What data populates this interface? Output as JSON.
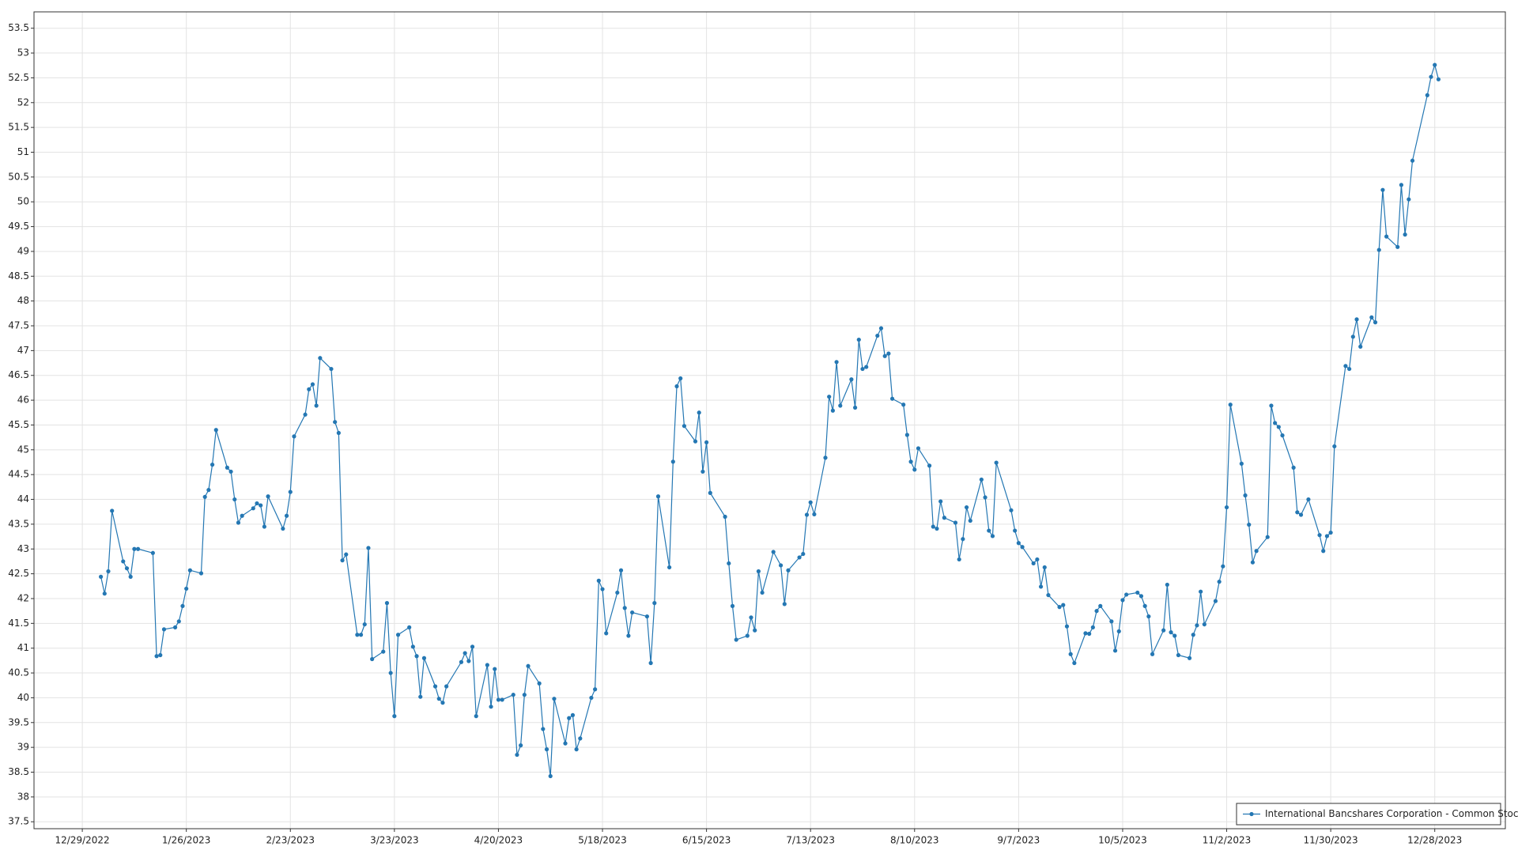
{
  "chart_data": {
    "type": "line",
    "x": [
      "1/3/2023",
      "1/4/2023",
      "1/5/2023",
      "1/6/2023",
      "1/9/2023",
      "1/10/2023",
      "1/11/2023",
      "1/12/2023",
      "1/13/2023",
      "1/17/2023",
      "1/18/2023",
      "1/19/2023",
      "1/20/2023",
      "1/23/2023",
      "1/24/2023",
      "1/25/2023",
      "1/26/2023",
      "1/27/2023",
      "1/30/2023",
      "1/31/2023",
      "2/1/2023",
      "2/2/2023",
      "2/3/2023",
      "2/6/2023",
      "2/7/2023",
      "2/8/2023",
      "2/9/2023",
      "2/10/2023",
      "2/13/2023",
      "2/14/2023",
      "2/15/2023",
      "2/16/2023",
      "2/17/2023",
      "2/21/2023",
      "2/22/2023",
      "2/23/2023",
      "2/24/2023",
      "2/27/2023",
      "2/28/2023",
      "3/1/2023",
      "3/2/2023",
      "3/3/2023",
      "3/6/2023",
      "3/7/2023",
      "3/8/2023",
      "3/9/2023",
      "3/10/2023",
      "3/13/2023",
      "3/14/2023",
      "3/15/2023",
      "3/16/2023",
      "3/17/2023",
      "3/20/2023",
      "3/21/2023",
      "3/22/2023",
      "3/23/2023",
      "3/24/2023",
      "3/27/2023",
      "3/28/2023",
      "3/29/2023",
      "3/30/2023",
      "3/31/2023",
      "4/3/2023",
      "4/4/2023",
      "4/5/2023",
      "4/6/2023",
      "4/10/2023",
      "4/11/2023",
      "4/12/2023",
      "4/13/2023",
      "4/14/2023",
      "4/17/2023",
      "4/18/2023",
      "4/19/2023",
      "4/20/2023",
      "4/21/2023",
      "4/24/2023",
      "4/25/2023",
      "4/26/2023",
      "4/27/2023",
      "4/28/2023",
      "5/1/2023",
      "5/2/2023",
      "5/3/2023",
      "5/4/2023",
      "5/5/2023",
      "5/8/2023",
      "5/9/2023",
      "5/10/2023",
      "5/11/2023",
      "5/12/2023",
      "5/15/2023",
      "5/16/2023",
      "5/17/2023",
      "5/18/2023",
      "5/19/2023",
      "5/22/2023",
      "5/23/2023",
      "5/24/2023",
      "5/25/2023",
      "5/26/2023",
      "5/30/2023",
      "5/31/2023",
      "6/1/2023",
      "6/2/2023",
      "6/5/2023",
      "6/6/2023",
      "6/7/2023",
      "6/8/2023",
      "6/9/2023",
      "6/12/2023",
      "6/13/2023",
      "6/14/2023",
      "6/15/2023",
      "6/16/2023",
      "6/20/2023",
      "6/21/2023",
      "6/22/2023",
      "6/23/2023",
      "6/26/2023",
      "6/27/2023",
      "6/28/2023",
      "6/29/2023",
      "6/30/2023",
      "7/3/2023",
      "7/5/2023",
      "7/6/2023",
      "7/7/2023",
      "7/10/2023",
      "7/11/2023",
      "7/12/2023",
      "7/13/2023",
      "7/14/2023",
      "7/17/2023",
      "7/18/2023",
      "7/19/2023",
      "7/20/2023",
      "7/21/2023",
      "7/24/2023",
      "7/25/2023",
      "7/26/2023",
      "7/27/2023",
      "7/28/2023",
      "7/31/2023",
      "8/1/2023",
      "8/2/2023",
      "8/3/2023",
      "8/4/2023",
      "8/7/2023",
      "8/8/2023",
      "8/9/2023",
      "8/10/2023",
      "8/11/2023",
      "8/14/2023",
      "8/15/2023",
      "8/16/2023",
      "8/17/2023",
      "8/18/2023",
      "8/21/2023",
      "8/22/2023",
      "8/23/2023",
      "8/24/2023",
      "8/25/2023",
      "8/28/2023",
      "8/29/2023",
      "8/30/2023",
      "8/31/2023",
      "9/1/2023",
      "9/5/2023",
      "9/6/2023",
      "9/7/2023",
      "9/8/2023",
      "9/11/2023",
      "9/12/2023",
      "9/13/2023",
      "9/14/2023",
      "9/15/2023",
      "9/18/2023",
      "9/19/2023",
      "9/20/2023",
      "9/21/2023",
      "9/22/2023",
      "9/25/2023",
      "9/26/2023",
      "9/27/2023",
      "9/28/2023",
      "9/29/2023",
      "10/2/2023",
      "10/3/2023",
      "10/4/2023",
      "10/5/2023",
      "10/6/2023",
      "10/9/2023",
      "10/10/2023",
      "10/11/2023",
      "10/12/2023",
      "10/13/2023",
      "10/16/2023",
      "10/17/2023",
      "10/18/2023",
      "10/19/2023",
      "10/20/2023",
      "10/23/2023",
      "10/24/2023",
      "10/25/2023",
      "10/26/2023",
      "10/27/2023",
      "10/30/2023",
      "10/31/2023",
      "11/1/2023",
      "11/2/2023",
      "11/3/2023",
      "11/6/2023",
      "11/7/2023",
      "11/8/2023",
      "11/9/2023",
      "11/10/2023",
      "11/13/2023",
      "11/14/2023",
      "11/15/2023",
      "11/16/2023",
      "11/17/2023",
      "11/20/2023",
      "11/21/2023",
      "11/22/2023",
      "11/24/2023",
      "11/27/2023",
      "11/28/2023",
      "11/29/2023",
      "11/30/2023",
      "12/1/2023",
      "12/4/2023",
      "12/5/2023",
      "12/6/2023",
      "12/7/2023",
      "12/8/2023",
      "12/11/2023",
      "12/12/2023",
      "12/13/2023",
      "12/14/2023",
      "12/15/2023",
      "12/18/2023",
      "12/19/2023",
      "12/20/2023",
      "12/21/2023",
      "12/22/2023",
      "12/26/2023",
      "12/27/2023",
      "12/28/2023",
      "12/29/2023"
    ],
    "series": [
      {
        "name": "International Bancshares Corporation - Common Stock",
        "color": "#2477b3",
        "values": [
          42.44,
          42.1,
          42.55,
          43.77,
          42.75,
          42.61,
          42.44,
          43.0,
          43.0,
          42.92,
          40.84,
          40.86,
          41.38,
          41.42,
          41.54,
          41.85,
          42.2,
          42.57,
          42.51,
          44.05,
          44.19,
          44.7,
          45.4,
          44.64,
          44.56,
          44.0,
          43.53,
          43.67,
          43.82,
          43.92,
          43.88,
          43.45,
          44.06,
          43.41,
          43.67,
          44.15,
          45.27,
          45.71,
          46.22,
          46.32,
          45.89,
          46.85,
          46.63,
          45.56,
          45.34,
          42.77,
          42.89,
          41.27,
          41.27,
          41.48,
          43.02,
          40.78,
          40.93,
          41.91,
          40.5,
          39.63,
          41.27,
          41.42,
          41.03,
          40.84,
          40.02,
          40.8,
          40.23,
          39.98,
          39.9,
          40.23,
          40.72,
          40.9,
          40.74,
          41.03,
          39.63,
          40.66,
          39.82,
          40.58,
          39.96,
          39.96,
          40.06,
          38.85,
          39.04,
          40.06,
          40.64,
          40.29,
          39.37,
          38.96,
          38.42,
          39.98,
          39.08,
          39.59,
          39.65,
          38.96,
          39.18,
          40.0,
          40.17,
          42.36,
          42.19,
          41.3,
          42.12,
          42.57,
          41.81,
          41.25,
          41.72,
          41.64,
          40.7,
          41.91,
          44.06,
          42.63,
          44.76,
          46.28,
          46.44,
          45.48,
          45.17,
          45.75,
          44.56,
          45.15,
          44.13,
          43.65,
          42.71,
          41.85,
          41.17,
          41.25,
          41.62,
          41.36,
          42.55,
          42.12,
          42.94,
          42.67,
          41.89,
          42.57,
          42.83,
          42.9,
          43.69,
          43.94,
          43.7,
          44.84,
          46.07,
          45.79,
          46.77,
          45.89,
          46.42,
          45.85,
          47.22,
          46.63,
          46.67,
          47.3,
          47.45,
          46.89,
          46.94,
          46.03,
          45.91,
          45.3,
          44.76,
          44.6,
          45.03,
          44.68,
          43.45,
          43.41,
          43.96,
          43.63,
          43.53,
          42.79,
          43.2,
          43.84,
          43.57,
          44.4,
          44.04,
          43.37,
          43.26,
          44.74,
          43.78,
          43.37,
          43.12,
          43.04,
          42.71,
          42.79,
          42.24,
          42.63,
          42.07,
          41.83,
          41.87,
          41.44,
          40.88,
          40.7,
          41.3,
          41.29,
          41.42,
          41.75,
          41.85,
          41.54,
          40.95,
          41.34,
          41.97,
          42.08,
          42.12,
          42.05,
          41.85,
          41.64,
          40.88,
          41.36,
          42.28,
          41.32,
          41.25,
          40.86,
          40.8,
          41.27,
          41.46,
          42.14,
          41.48,
          41.95,
          42.34,
          42.65,
          43.84,
          45.91,
          44.72,
          44.08,
          43.49,
          42.73,
          42.96,
          43.24,
          45.89,
          45.54,
          45.46,
          45.29,
          44.64,
          43.74,
          43.69,
          44.0,
          43.28,
          42.96,
          43.26,
          43.33,
          45.07,
          46.69,
          46.63,
          47.28,
          47.63,
          47.08,
          47.67,
          47.57,
          49.03,
          50.24,
          49.3,
          49.09,
          50.34,
          49.34,
          50.05,
          50.83,
          52.15,
          52.52,
          52.76,
          52.47
        ]
      }
    ],
    "xlim": [
      "12/16/2022",
      "1/16/2024"
    ],
    "xticks": [
      "12/29/2022",
      "1/26/2023",
      "2/23/2023",
      "3/23/2023",
      "4/20/2023",
      "5/18/2023",
      "6/15/2023",
      "7/13/2023",
      "8/10/2023",
      "9/7/2023",
      "10/5/2023",
      "11/2/2023",
      "11/30/2023",
      "12/28/2023"
    ],
    "ylim": [
      37.36,
      53.83
    ],
    "yticks": [
      37.5,
      38,
      38.5,
      39,
      39.5,
      40,
      40.5,
      41,
      41.5,
      42,
      42.5,
      43,
      43.5,
      44,
      44.5,
      45,
      45.5,
      46,
      46.5,
      47,
      47.5,
      48,
      48.5,
      49,
      49.5,
      50,
      50.5,
      51,
      51.5,
      52,
      52.5,
      53,
      53.5
    ],
    "grid": true,
    "legend": "lower right"
  }
}
